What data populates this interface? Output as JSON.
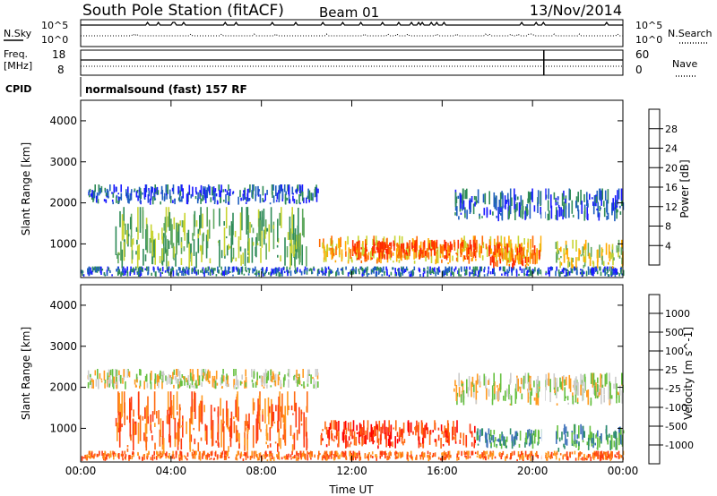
{
  "header": {
    "station": "South Pole Station (fitACF)",
    "beam": "Beam 01",
    "date": "13/Nov/2014"
  },
  "panels": {
    "nsky": {
      "left_label": "N.Sky",
      "ticks": [
        "10^5",
        "10^0"
      ],
      "right_label": "N.Search",
      "right_ticks": [
        "10^5",
        "10^0"
      ]
    },
    "freq": {
      "left_label_1": "Freq.",
      "left_label_2": "[MHz]",
      "ticks": [
        "18",
        "8"
      ],
      "right_label": "Nave",
      "right_ticks": [
        "60",
        "0"
      ]
    },
    "cpid": {
      "left_label": "CPID",
      "text": "normalsound (fast) 157 RF"
    }
  },
  "colors": {
    "power_scale": [
      "#1a1aff",
      "#1f5fbf",
      "#2e8b57",
      "#5fa85f",
      "#c8d432",
      "#ffaa00",
      "#ff6a00",
      "#ff2a00"
    ],
    "velocity_scale": [
      "#2a4fcc",
      "#3a6fb8",
      "#2f8f6a",
      "#66c040",
      "#cccccc",
      "#ff9a20",
      "#ff6a10",
      "#ff3a10",
      "#ff0000"
    ],
    "ground_scatter": "#c8c8c8"
  },
  "chart_data": [
    {
      "type": "heatmap",
      "title": "Power",
      "ylabel": "Slant Range [km]",
      "xlabel": "",
      "xlim": [
        "00:00",
        "00:00"
      ],
      "x_ticks": [
        "00:00",
        "04:00",
        "08:00",
        "12:00",
        "16:00",
        "20:00",
        "00:00"
      ],
      "ylim": [
        180,
        4500
      ],
      "y_ticks": [
        "1000",
        "2000",
        "3000",
        "4000"
      ],
      "colorbar": {
        "label": "Power [dB]",
        "ticks": [
          "28",
          "24",
          "20",
          "16",
          "12",
          "8",
          "4"
        ]
      },
      "bands": [
        {
          "x0": 0.0,
          "x1": 24.0,
          "y0": 200,
          "y1": 450,
          "level": 1
        },
        {
          "x0": 0.3,
          "x1": 10.5,
          "y0": 1950,
          "y1": 2450,
          "level": 1
        },
        {
          "x0": 16.5,
          "x1": 24.0,
          "y0": 1550,
          "y1": 2350,
          "level": 1
        },
        {
          "x0": 1.5,
          "x1": 10.0,
          "y0": 400,
          "y1": 1900,
          "level": 3
        },
        {
          "x0": 10.5,
          "x1": 20.5,
          "y0": 500,
          "y1": 1200,
          "level": 5
        },
        {
          "x0": 12.0,
          "x1": 17.5,
          "y0": 600,
          "y1": 1100,
          "level": 7
        },
        {
          "x0": 18.0,
          "x1": 20.3,
          "y0": 400,
          "y1": 1000,
          "level": 6
        },
        {
          "x0": 21.0,
          "x1": 24.0,
          "y0": 400,
          "y1": 1100,
          "level": 4
        }
      ]
    },
    {
      "type": "heatmap",
      "title": "Velocity",
      "ylabel": "Slant Range [km]",
      "xlabel": "Time UT",
      "xlim": [
        "00:00",
        "00:00"
      ],
      "x_ticks": [
        "00:00",
        "04:00",
        "08:00",
        "12:00",
        "16:00",
        "20:00",
        "00:00"
      ],
      "ylim": [
        180,
        4500
      ],
      "y_ticks": [
        "1000",
        "2000",
        "3000",
        "4000"
      ],
      "colorbar": {
        "label": "Velocity [m s^-1]",
        "ticks": [
          "1000",
          "500",
          "100",
          "25",
          "-25",
          "-100",
          "-500",
          "-1000"
        ]
      },
      "bands": [
        {
          "x0": 0.0,
          "x1": 24.0,
          "y0": 200,
          "y1": 450,
          "level": 6
        },
        {
          "x0": 0.3,
          "x1": 10.5,
          "y0": 1950,
          "y1": 2450,
          "level": 4
        },
        {
          "x0": 16.5,
          "x1": 24.0,
          "y0": 1550,
          "y1": 2350,
          "level": 4
        },
        {
          "x0": 1.5,
          "x1": 10.0,
          "y0": 400,
          "y1": 1900,
          "level": 6
        },
        {
          "x0": 10.5,
          "x1": 17.5,
          "y0": 500,
          "y1": 1200,
          "level": 7
        },
        {
          "x0": 17.5,
          "x1": 20.5,
          "y0": 500,
          "y1": 1000,
          "level": 2
        },
        {
          "x0": 21.0,
          "x1": 24.0,
          "y0": 400,
          "y1": 1100,
          "level": 2
        }
      ]
    }
  ]
}
